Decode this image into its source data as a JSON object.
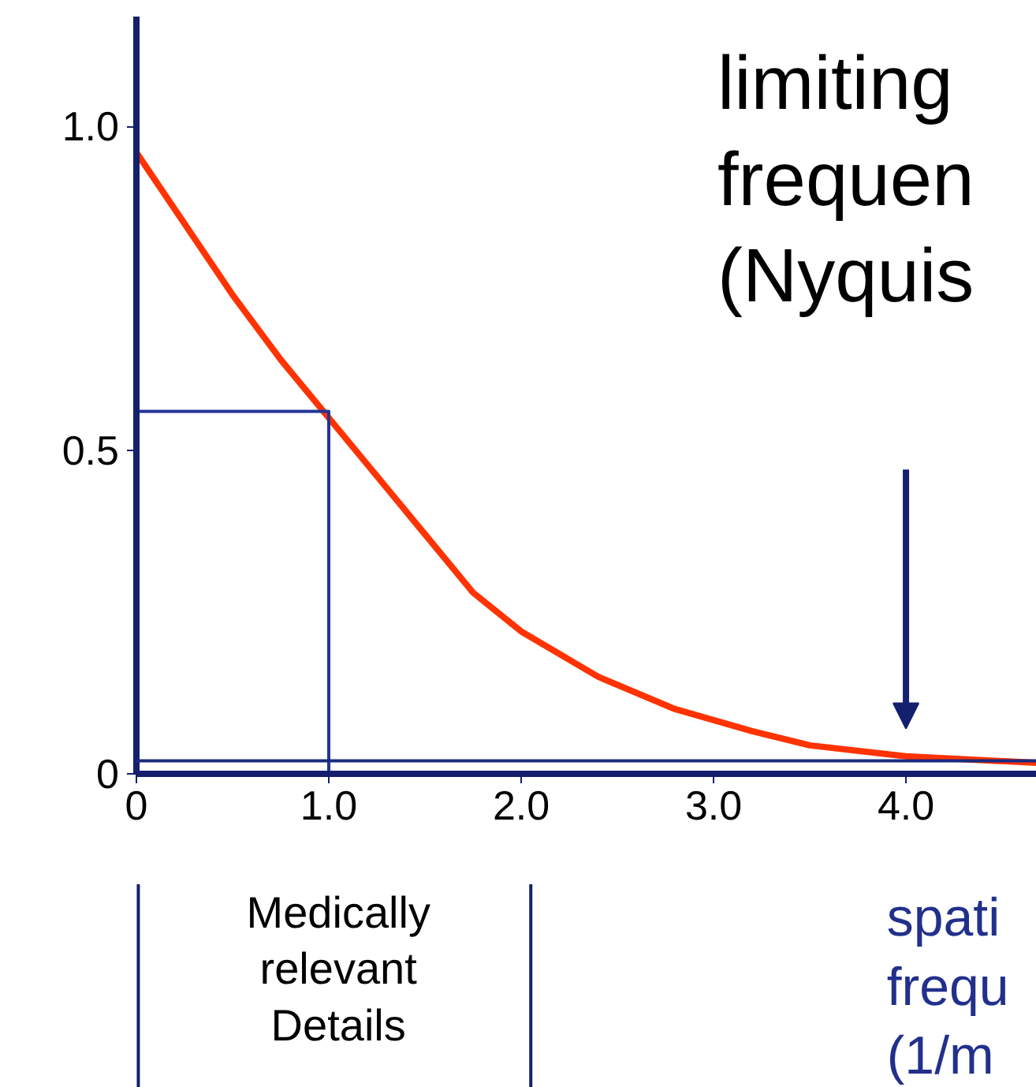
{
  "chart_data": {
    "type": "line",
    "xlim": [
      0,
      4.68
    ],
    "ylim": [
      0,
      1.17
    ],
    "xticks": [
      {
        "value": 0,
        "label": "0"
      },
      {
        "value": 1,
        "label": "1.0"
      },
      {
        "value": 2,
        "label": "2.0"
      },
      {
        "value": 3,
        "label": "3.0"
      },
      {
        "value": 4,
        "label": "4.0"
      }
    ],
    "yticks": [
      {
        "value": 0,
        "label": "0"
      },
      {
        "value": 0.5,
        "label": "0.5"
      },
      {
        "value": 1,
        "label": "1.0"
      }
    ],
    "series": [
      {
        "color": "#ff3300",
        "x": [
          0,
          0.25,
          0.5,
          0.75,
          1.0,
          1.25,
          1.5,
          1.75,
          2.0,
          2.4,
          2.8,
          3.2,
          3.5,
          4.0,
          4.68
        ],
        "values": [
          0.96,
          0.85,
          0.74,
          0.64,
          0.55,
          0.46,
          0.37,
          0.28,
          0.22,
          0.15,
          0.1,
          0.066,
          0.044,
          0.027,
          0.017
        ]
      },
      {
        "color": "#243494",
        "x": [
          0,
          1,
          1
        ],
        "values": [
          0.56,
          0.56,
          0
        ]
      }
    ],
    "ref_lines": [
      {
        "axis": "y",
        "value": 0.02,
        "color": "#1a2a80"
      }
    ],
    "annotations": [
      "limiting\nfrequen\n(Nyquis",
      "Medically\nrelevant\nDetails",
      "spati\nfrequ\n(1/m"
    ],
    "grid": false,
    "marker": "none",
    "line_style": "solid"
  }
}
